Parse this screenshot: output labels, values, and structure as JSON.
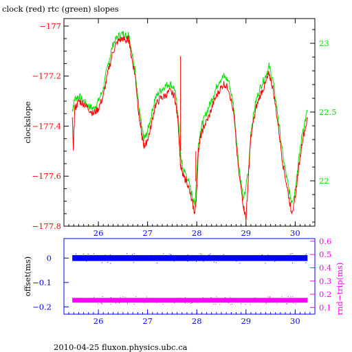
{
  "title": "clock (red) rtc (green) slopes",
  "footer": "2010-04-25 fluxon.physics.ubc.ca",
  "colors": {
    "red": "#ff0000",
    "green": "#00e000",
    "blue": "#0000ff",
    "magenta": "#ff00ff",
    "axis": "#000000"
  },
  "chart_data": [
    {
      "type": "line",
      "title": "clock (red) rtc (green) slopes",
      "ylabel": "clockslope",
      "xlim": [
        25.3,
        30.4
      ],
      "ylim": [
        -177.8,
        -176.97
      ],
      "y2lim": [
        21.67,
        23.18
      ],
      "x_ticks": [
        26,
        27,
        28,
        29,
        30
      ],
      "y_ticks": [
        -177,
        -177.2,
        -177.4,
        -177.6,
        -177.8
      ],
      "y_tick_labels": [
        "−177",
        "−177.2",
        "−177.4",
        "−177.6",
        "−177.8"
      ],
      "y2_ticks": [
        22,
        22.5,
        23
      ],
      "y2_tick_labels": [
        "22",
        "22.5",
        "23"
      ],
      "series": [
        {
          "color": "red",
          "axis": "left",
          "x": [
            25.47,
            25.49,
            25.52,
            25.6,
            25.7,
            25.8,
            25.9,
            26.0,
            26.1,
            26.2,
            26.3,
            26.4,
            26.5,
            26.57,
            26.62,
            26.67,
            26.75,
            26.82,
            26.87,
            26.92,
            26.97,
            27.05,
            27.15,
            27.25,
            27.35,
            27.45,
            27.55,
            27.62,
            27.67,
            27.72,
            27.8,
            27.9,
            27.96,
            28.0,
            28.03,
            28.08,
            28.15,
            28.25,
            28.35,
            28.45,
            28.55,
            28.65,
            28.75,
            28.85,
            28.95,
            29.0,
            29.05,
            29.1,
            29.2,
            29.3,
            29.4,
            29.47,
            29.55,
            29.65,
            29.75,
            29.85,
            29.92,
            29.98,
            30.05,
            30.15,
            30.25
          ],
          "y": [
            -177.36,
            -177.5,
            -177.33,
            -177.3,
            -177.31,
            -177.33,
            -177.35,
            -177.33,
            -177.28,
            -177.18,
            -177.1,
            -177.06,
            -177.05,
            -177.06,
            -177.05,
            -177.12,
            -177.2,
            -177.35,
            -177.42,
            -177.48,
            -177.47,
            -177.42,
            -177.32,
            -177.29,
            -177.28,
            -177.26,
            -177.28,
            -177.38,
            -177.56,
            -177.6,
            -177.62,
            -177.7,
            -177.75,
            -177.66,
            -177.5,
            -177.44,
            -177.4,
            -177.36,
            -177.3,
            -177.26,
            -177.23,
            -177.25,
            -177.35,
            -177.58,
            -177.72,
            -177.77,
            -177.6,
            -177.44,
            -177.33,
            -177.27,
            -177.23,
            -177.19,
            -177.25,
            -177.39,
            -177.55,
            -177.66,
            -177.74,
            -177.72,
            -177.6,
            -177.45,
            -177.37
          ]
        },
        {
          "color": "green",
          "axis": "left",
          "x": [
            25.47,
            25.52,
            25.6,
            25.7,
            25.8,
            25.9,
            26.0,
            26.1,
            26.2,
            26.3,
            26.4,
            26.5,
            26.57,
            26.62,
            26.67,
            26.75,
            26.82,
            26.87,
            26.92,
            26.97,
            27.05,
            27.15,
            27.25,
            27.35,
            27.45,
            27.55,
            27.62,
            27.67,
            27.72,
            27.8,
            27.9,
            27.96,
            28.03,
            28.08,
            28.15,
            28.25,
            28.35,
            28.45,
            28.55,
            28.65,
            28.75,
            28.85,
            28.95,
            29.05,
            29.1,
            29.2,
            29.3,
            29.4,
            29.47,
            29.55,
            29.65,
            29.75,
            29.85,
            29.92,
            29.98,
            30.05,
            30.15,
            30.25
          ],
          "y": [
            -177.34,
            -177.29,
            -177.28,
            -177.3,
            -177.32,
            -177.33,
            -177.3,
            -177.25,
            -177.15,
            -177.07,
            -177.04,
            -177.03,
            -177.04,
            -177.03,
            -177.1,
            -177.18,
            -177.32,
            -177.39,
            -177.45,
            -177.44,
            -177.38,
            -177.29,
            -177.26,
            -177.24,
            -177.23,
            -177.25,
            -177.35,
            -177.52,
            -177.57,
            -177.6,
            -177.67,
            -177.72,
            -177.48,
            -177.41,
            -177.37,
            -177.32,
            -177.27,
            -177.22,
            -177.2,
            -177.22,
            -177.32,
            -177.55,
            -177.7,
            -177.58,
            -177.42,
            -177.3,
            -177.24,
            -177.2,
            -177.16,
            -177.22,
            -177.36,
            -177.52,
            -177.63,
            -177.7,
            -177.68,
            -177.57,
            -177.42,
            -177.34
          ]
        }
      ]
    },
    {
      "type": "scatter",
      "ylabel": "offset(ms)",
      "y2label": "rnd−trip(ms)",
      "xlim": [
        25.3,
        30.4
      ],
      "ylim": [
        -0.23,
        0.08
      ],
      "y2lim": [
        0.05,
        0.62
      ],
      "x_ticks": [
        26,
        27,
        28,
        29,
        30
      ],
      "y_ticks": [
        0,
        -0.1,
        -0.2
      ],
      "y_tick_labels": [
        "0",
        "−0.1",
        "−0.2"
      ],
      "y2_ticks": [
        0.1,
        0.2,
        0.3,
        0.4,
        0.5,
        0.6
      ],
      "y2_tick_labels": [
        "0.1",
        "0.2",
        "0.3",
        "0.4",
        "0.5",
        "0.6"
      ],
      "series": [
        {
          "color": "blue",
          "axis": "left",
          "x": [
            25.47,
            30.25
          ],
          "y": [
            0.0,
            0.0
          ],
          "spread": 0.012
        },
        {
          "color": "magenta",
          "axis": "right",
          "x": [
            25.47,
            30.25
          ],
          "y": [
            0.155,
            0.155
          ],
          "spread": 0.018
        }
      ]
    }
  ]
}
